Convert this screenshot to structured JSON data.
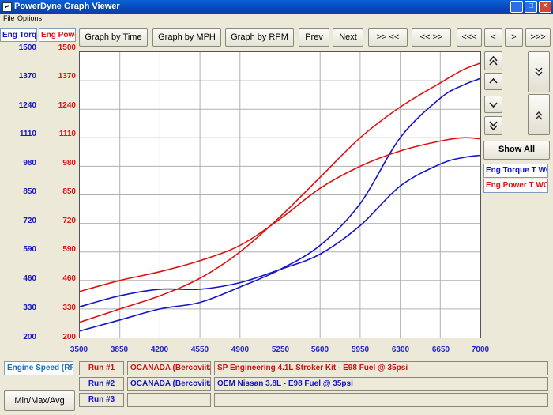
{
  "window": {
    "title": "PowerDyne Graph Viewer",
    "minimize": "_",
    "maximize": "□",
    "close": "×"
  },
  "menu": {
    "file": "File",
    "options": "Options"
  },
  "toolbar": {
    "graph_time": "Graph by Time",
    "graph_mph": "Graph by MPH",
    "graph_rpm": "Graph by RPM",
    "prev": "Prev",
    "next": "Next",
    "zoom_in": ">> <<",
    "zoom_out": "<< >>",
    "scroll_first": "<<<",
    "scroll_left": "<",
    "scroll_right": ">",
    "scroll_last": ">>>"
  },
  "left_axis": {
    "header": "Eng Torq",
    "color": "#1515c8",
    "ticks": [
      "1500",
      "1370",
      "1240",
      "1110",
      "980",
      "850",
      "720",
      "590",
      "460",
      "330",
      "200"
    ]
  },
  "right_axis": {
    "header": "Eng Power",
    "color": "#e01010",
    "ticks": [
      "1500",
      "1370",
      "1240",
      "1110",
      "980",
      "850",
      "720",
      "590",
      "460",
      "330",
      "200"
    ]
  },
  "side": {
    "show_all": "Show All",
    "legend_torque": "Eng Torque T WC",
    "legend_power": "Eng Power T WC",
    "up_fast_icon": "double-chevron-up-icon",
    "up_icon": "chevron-up-icon",
    "down_icon": "chevron-down-icon",
    "down_fast_icon": "double-chevron-down-icon",
    "expand_icon": "expand-vertical-icon",
    "collapse_icon": "collapse-vertical-icon"
  },
  "bottom": {
    "x_axis_label": "Engine Speed (RPM)",
    "minmax_button": "Min/Max/Avg",
    "runs": [
      {
        "label": "Run #1",
        "customer": "OCANADA (Bercoviitz)",
        "description": "SP Engineering 4.1L Stroker Kit - E98 Fuel @ 35psi",
        "color": "#d01010"
      },
      {
        "label": "Run #2",
        "customer": "OCANADA (Bercoviitz)",
        "description": "OEM Nissan 3.8L - E98 Fuel @ 35psi",
        "color": "#1515c8"
      },
      {
        "label": "Run #3",
        "customer": "",
        "description": "",
        "color": "#1515c8"
      }
    ]
  },
  "chart_data": {
    "type": "line",
    "x_ticks": [
      "3500",
      "3850",
      "4200",
      "4550",
      "4900",
      "5250",
      "5600",
      "5950",
      "6300",
      "6650",
      "7000"
    ],
    "xlim": [
      3500,
      7000
    ],
    "ylim": [
      200,
      1500
    ],
    "grid": true,
    "series": [
      {
        "name": "Eng Torque T WC",
        "run": "Run #1",
        "color": "#e01010",
        "x": [
          3500,
          3850,
          4200,
          4550,
          4900,
          5250,
          5600,
          5950,
          6300,
          6650,
          6850,
          7000
        ],
        "y": [
          410,
          460,
          500,
          550,
          620,
          740,
          880,
          980,
          1050,
          1095,
          1110,
          1105
        ]
      },
      {
        "name": "Eng Power T WC",
        "run": "Run #1",
        "color": "#e01010",
        "x": [
          3500,
          3850,
          4200,
          4550,
          4900,
          5250,
          5600,
          5950,
          6300,
          6650,
          6850,
          7000
        ],
        "y": [
          270,
          330,
          390,
          470,
          590,
          750,
          930,
          1110,
          1250,
          1360,
          1420,
          1450
        ]
      },
      {
        "name": "Eng Torque T WC",
        "run": "Run #2",
        "color": "#1515c8",
        "x": [
          3500,
          3850,
          4200,
          4550,
          4900,
          5250,
          5600,
          5950,
          6300,
          6650,
          6850,
          7000
        ],
        "y": [
          340,
          390,
          420,
          420,
          450,
          510,
          580,
          710,
          890,
          990,
          1020,
          1030
        ]
      },
      {
        "name": "Eng Power T WC",
        "run": "Run #2",
        "color": "#1515c8",
        "x": [
          3500,
          3850,
          4200,
          4550,
          4900,
          5250,
          5600,
          5950,
          6300,
          6650,
          6850,
          7000
        ],
        "y": [
          230,
          280,
          330,
          360,
          430,
          510,
          620,
          810,
          1110,
          1290,
          1350,
          1380
        ]
      }
    ]
  }
}
